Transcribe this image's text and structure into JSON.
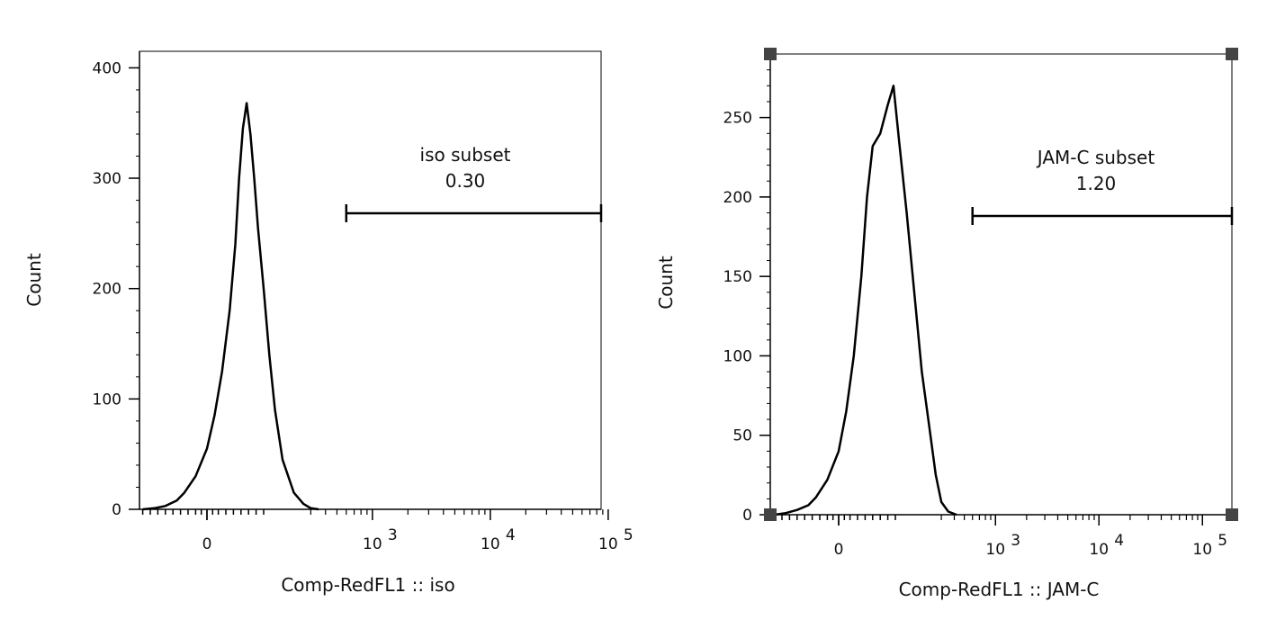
{
  "chart_data": [
    {
      "type": "histogram",
      "xlabel": "Comp-RedFL1 :: iso",
      "ylabel": "Count",
      "yticks": [
        0,
        100,
        200,
        300,
        400
      ],
      "ylim": [
        0,
        415
      ],
      "xticks": [
        {
          "value": 0,
          "base": "0",
          "exp": ""
        },
        {
          "value": 1000,
          "base": "10",
          "exp": "3"
        },
        {
          "value": 10000,
          "base": "10",
          "exp": "4"
        },
        {
          "value": 100000,
          "base": "10",
          "exp": "5"
        }
      ],
      "xscale": "biexponential",
      "gate": {
        "name": "iso subset",
        "value": "0.30",
        "x_start": 600,
        "x_end": 110000
      },
      "curve": [
        [
          -170,
          0
        ],
        [
          -140,
          1
        ],
        [
          -110,
          3
        ],
        [
          -80,
          8
        ],
        [
          -60,
          15
        ],
        [
          -30,
          30
        ],
        [
          0,
          55
        ],
        [
          20,
          85
        ],
        [
          40,
          125
        ],
        [
          60,
          180
        ],
        [
          75,
          240
        ],
        [
          85,
          300
        ],
        [
          95,
          345
        ],
        [
          105,
          368
        ],
        [
          115,
          340
        ],
        [
          125,
          300
        ],
        [
          135,
          255
        ],
        [
          150,
          200
        ],
        [
          165,
          140
        ],
        [
          180,
          90
        ],
        [
          200,
          45
        ],
        [
          230,
          15
        ],
        [
          260,
          5
        ],
        [
          300,
          1
        ],
        [
          350,
          0
        ]
      ]
    },
    {
      "type": "histogram",
      "xlabel": "Comp-RedFL1 :: JAM-C",
      "ylabel": "Count",
      "yticks": [
        0,
        50,
        100,
        150,
        200,
        250
      ],
      "ylim": [
        0,
        290
      ],
      "xticks": [
        {
          "value": 0,
          "base": "0",
          "exp": ""
        },
        {
          "value": 1000,
          "base": "10",
          "exp": "3"
        },
        {
          "value": 10000,
          "base": "10",
          "exp": "4"
        },
        {
          "value": 100000,
          "base": "10",
          "exp": "5"
        }
      ],
      "xscale": "biexponential",
      "gate": {
        "name": "JAM-C subset",
        "value": "1.20",
        "x_start": 600,
        "x_end": 110000
      },
      "curve": [
        [
          -170,
          0
        ],
        [
          -140,
          1
        ],
        [
          -110,
          3
        ],
        [
          -80,
          6
        ],
        [
          -60,
          11
        ],
        [
          -30,
          22
        ],
        [
          0,
          40
        ],
        [
          20,
          65
        ],
        [
          40,
          100
        ],
        [
          60,
          150
        ],
        [
          75,
          200
        ],
        [
          90,
          232
        ],
        [
          110,
          240
        ],
        [
          130,
          258
        ],
        [
          145,
          270
        ],
        [
          160,
          235
        ],
        [
          180,
          190
        ],
        [
          200,
          140
        ],
        [
          220,
          90
        ],
        [
          240,
          55
        ],
        [
          265,
          25
        ],
        [
          300,
          8
        ],
        [
          350,
          2
        ],
        [
          420,
          0
        ]
      ]
    }
  ]
}
